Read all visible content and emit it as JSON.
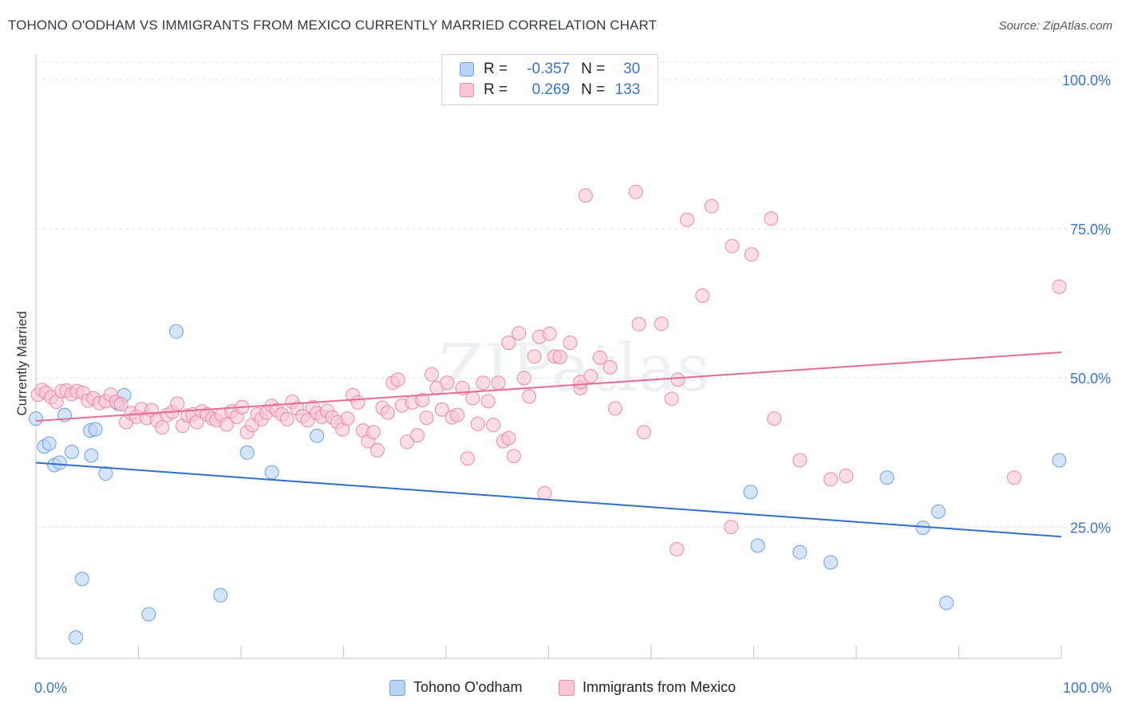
{
  "title": "TOHONO O'ODHAM VS IMMIGRANTS FROM MEXICO CURRENTLY MARRIED CORRELATION CHART",
  "source": "Source: ZipAtlas.com",
  "watermark": "ZIPatlas",
  "legend": {
    "r_label": "R =",
    "n_label": "N =",
    "rows": [
      {
        "r": "-0.357",
        "n": "30",
        "color": "#6d9fe0"
      },
      {
        "r": "0.269",
        "n": "133",
        "color": "#e98aa8"
      }
    ]
  },
  "chart_data": {
    "type": "scatter",
    "title": "TOHONO O'ODHAM VS IMMIGRANTS FROM MEXICO CURRENTLY MARRIED CORRELATION CHART",
    "xlabel": "",
    "ylabel": "Currently Married",
    "xlim": [
      0,
      100
    ],
    "ylim": [
      3,
      104
    ],
    "x_tick_labels": [
      "0.0%",
      "100.0%"
    ],
    "y_tick_labels": [
      "25.0%",
      "50.0%",
      "75.0%",
      "100.0%"
    ],
    "y_ticks": [
      25,
      50,
      75,
      100
    ],
    "grid": true,
    "legend_position": "bottom",
    "series": [
      {
        "name": "Tohono O'odham",
        "color": "#6d9fe0",
        "fill": "#b9d3f5",
        "trend": [
          [
            0,
            35.8
          ],
          [
            100,
            23.4
          ]
        ],
        "points": [
          [
            0.0,
            43.2
          ],
          [
            0.8,
            38.5
          ],
          [
            1.3,
            39.0
          ],
          [
            1.8,
            35.4
          ],
          [
            2.3,
            35.8
          ],
          [
            2.8,
            43.8
          ],
          [
            3.5,
            37.6
          ],
          [
            4.5,
            16.3
          ],
          [
            3.9,
            6.5
          ],
          [
            5.3,
            41.2
          ],
          [
            5.4,
            37.0
          ],
          [
            5.8,
            41.4
          ],
          [
            6.8,
            34.0
          ],
          [
            8.0,
            45.7
          ],
          [
            8.6,
            47.1
          ],
          [
            11.0,
            10.4
          ],
          [
            13.7,
            57.8
          ],
          [
            18.0,
            13.6
          ],
          [
            20.6,
            37.5
          ],
          [
            23.0,
            34.2
          ],
          [
            27.4,
            40.3
          ],
          [
            69.7,
            30.9
          ],
          [
            70.4,
            21.9
          ],
          [
            74.5,
            20.8
          ],
          [
            77.5,
            19.1
          ],
          [
            83.0,
            33.3
          ],
          [
            86.5,
            24.9
          ],
          [
            88.0,
            27.6
          ],
          [
            88.8,
            12.3
          ],
          [
            99.8,
            36.2
          ]
        ]
      },
      {
        "name": "Immigrants from Mexico",
        "color": "#e98aa8",
        "fill": "#f8c7d4",
        "trend": [
          [
            0,
            42.8
          ],
          [
            100,
            54.3
          ]
        ],
        "points": [
          [
            0.2,
            47.2
          ],
          [
            0.6,
            48.0
          ],
          [
            1.0,
            47.5
          ],
          [
            1.5,
            46.8
          ],
          [
            2.0,
            46.0
          ],
          [
            2.5,
            47.8
          ],
          [
            3.0,
            47.9
          ],
          [
            3.5,
            47.3
          ],
          [
            4.0,
            47.8
          ],
          [
            4.6,
            47.5
          ],
          [
            5.1,
            46.2
          ],
          [
            5.6,
            46.6
          ],
          [
            6.2,
            45.8
          ],
          [
            6.8,
            46.1
          ],
          [
            7.3,
            47.2
          ],
          [
            7.8,
            46.0
          ],
          [
            8.3,
            45.6
          ],
          [
            8.8,
            42.6
          ],
          [
            9.3,
            44.1
          ],
          [
            9.8,
            43.5
          ],
          [
            10.3,
            44.8
          ],
          [
            10.8,
            43.3
          ],
          [
            11.3,
            44.6
          ],
          [
            11.8,
            42.9
          ],
          [
            12.3,
            41.7
          ],
          [
            12.8,
            43.8
          ],
          [
            13.3,
            44.3
          ],
          [
            13.8,
            45.7
          ],
          [
            14.3,
            42.0
          ],
          [
            14.8,
            43.7
          ],
          [
            15.3,
            43.9
          ],
          [
            15.7,
            42.6
          ],
          [
            16.2,
            44.4
          ],
          [
            16.7,
            43.9
          ],
          [
            17.2,
            43.2
          ],
          [
            17.6,
            42.9
          ],
          [
            18.1,
            43.8
          ],
          [
            18.6,
            42.2
          ],
          [
            19.1,
            44.4
          ],
          [
            19.6,
            43.5
          ],
          [
            20.1,
            45.1
          ],
          [
            20.6,
            40.9
          ],
          [
            21.1,
            42.1
          ],
          [
            21.6,
            43.9
          ],
          [
            22.0,
            43.1
          ],
          [
            22.5,
            44.2
          ],
          [
            23.0,
            45.3
          ],
          [
            23.5,
            44.6
          ],
          [
            24.0,
            43.9
          ],
          [
            24.5,
            43.1
          ],
          [
            25.0,
            46.0
          ],
          [
            25.5,
            44.9
          ],
          [
            26.0,
            43.6
          ],
          [
            26.5,
            42.9
          ],
          [
            27.0,
            45.1
          ],
          [
            27.4,
            44.1
          ],
          [
            27.9,
            43.5
          ],
          [
            28.4,
            44.5
          ],
          [
            28.9,
            43.4
          ],
          [
            29.4,
            42.6
          ],
          [
            29.9,
            41.4
          ],
          [
            30.4,
            43.2
          ],
          [
            30.9,
            47.1
          ],
          [
            31.4,
            45.9
          ],
          [
            31.9,
            41.2
          ],
          [
            32.4,
            39.4
          ],
          [
            32.9,
            40.9
          ],
          [
            33.3,
            37.9
          ],
          [
            33.8,
            45.0
          ],
          [
            34.3,
            44.2
          ],
          [
            34.8,
            49.2
          ],
          [
            35.3,
            49.7
          ],
          [
            35.7,
            45.4
          ],
          [
            36.2,
            39.3
          ],
          [
            36.7,
            45.9
          ],
          [
            37.2,
            40.4
          ],
          [
            37.7,
            46.3
          ],
          [
            38.1,
            43.3
          ],
          [
            38.6,
            50.6
          ],
          [
            39.1,
            48.3
          ],
          [
            39.6,
            44.7
          ],
          [
            40.1,
            49.2
          ],
          [
            40.6,
            43.4
          ],
          [
            41.1,
            43.8
          ],
          [
            41.6,
            48.3
          ],
          [
            42.1,
            36.5
          ],
          [
            42.6,
            46.6
          ],
          [
            43.1,
            42.3
          ],
          [
            43.6,
            49.2
          ],
          [
            44.1,
            46.1
          ],
          [
            44.6,
            42.1
          ],
          [
            45.1,
            49.2
          ],
          [
            45.6,
            39.4
          ],
          [
            46.1,
            39.9
          ],
          [
            46.6,
            36.9
          ],
          [
            46.1,
            55.9
          ],
          [
            47.1,
            57.5
          ],
          [
            47.6,
            50.0
          ],
          [
            48.1,
            46.9
          ],
          [
            48.6,
            53.6
          ],
          [
            49.1,
            56.9
          ],
          [
            49.6,
            30.7
          ],
          [
            50.1,
            57.4
          ],
          [
            50.6,
            53.6
          ],
          [
            51.1,
            53.5
          ],
          [
            52.1,
            55.9
          ],
          [
            53.1,
            48.3
          ],
          [
            53.1,
            49.3
          ],
          [
            53.6,
            80.6
          ],
          [
            54.1,
            50.3
          ],
          [
            55.0,
            53.4
          ],
          [
            56.0,
            51.8
          ],
          [
            56.5,
            44.9
          ],
          [
            58.5,
            81.2
          ],
          [
            58.8,
            59.0
          ],
          [
            59.3,
            40.9
          ],
          [
            61.0,
            59.1
          ],
          [
            62.0,
            46.5
          ],
          [
            62.6,
            49.7
          ],
          [
            62.5,
            21.3
          ],
          [
            63.5,
            76.5
          ],
          [
            65.0,
            63.8
          ],
          [
            65.9,
            78.8
          ],
          [
            67.8,
            25.0
          ],
          [
            67.9,
            72.1
          ],
          [
            69.8,
            70.7
          ],
          [
            71.7,
            76.7
          ],
          [
            72.0,
            43.2
          ],
          [
            74.5,
            36.2
          ],
          [
            77.5,
            33.0
          ],
          [
            79.0,
            33.6
          ],
          [
            95.4,
            33.3
          ],
          [
            99.8,
            65.3
          ]
        ]
      }
    ]
  }
}
